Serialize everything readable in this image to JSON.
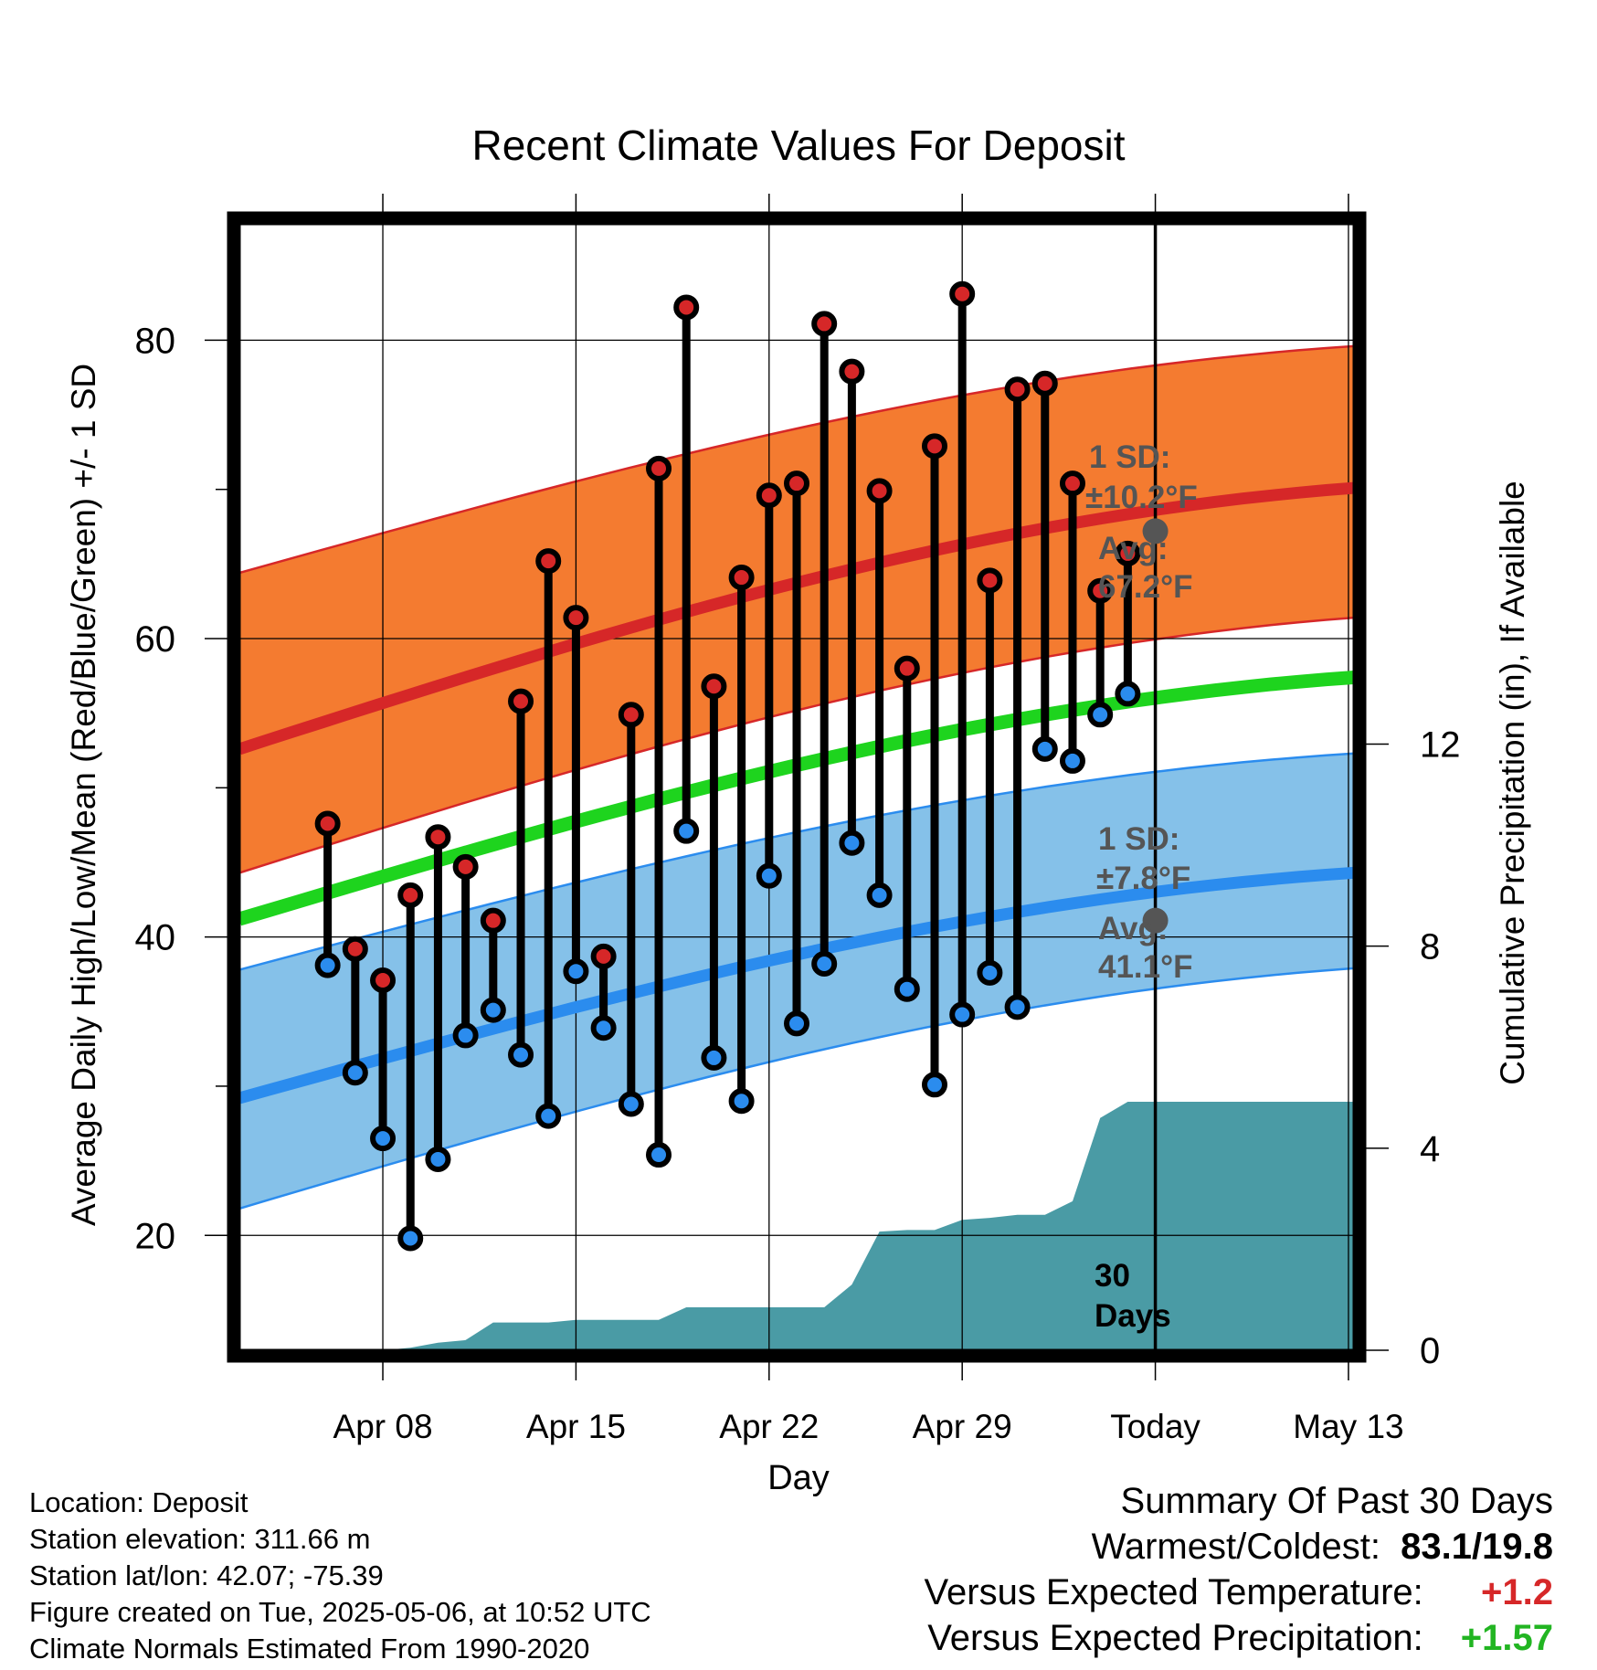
{
  "chart_data": {
    "type": "line",
    "title": "Recent Climate Values For Deposit",
    "xlabel": "Day",
    "ylabel": "Average Daily High/Low/Mean (Red/Blue/Green) +/- 1 SD",
    "y2label": "Cumulative Precipitation (in), If Available",
    "xlim": [
      -5.2,
      35.2
    ],
    "ylim": [
      12.3,
      87.8
    ],
    "y2lim": [
      0,
      22.3
    ],
    "xticks": [
      {
        "x": 0,
        "label": "Apr 08"
      },
      {
        "x": 7,
        "label": "Apr 15"
      },
      {
        "x": 14,
        "label": "Apr 22"
      },
      {
        "x": 21,
        "label": "Apr 29"
      },
      {
        "x": 28,
        "label": "Today"
      },
      {
        "x": 35,
        "label": "May 13"
      }
    ],
    "yticks": [
      20,
      40,
      60,
      80
    ],
    "y2ticks": [
      0,
      4,
      8,
      12
    ],
    "grid": true,
    "days_x": [
      -2,
      -1,
      0,
      1,
      2,
      3,
      4,
      5,
      6,
      7,
      8,
      9,
      10,
      11,
      12,
      13,
      14,
      15,
      16,
      17,
      18,
      19,
      20,
      21,
      22,
      23,
      24,
      25,
      26,
      27
    ],
    "series": [
      {
        "name": "High",
        "color": "#d62728",
        "values": [
          47.6,
          39.2,
          37.1,
          42.8,
          46.7,
          44.7,
          41.1,
          55.8,
          65.2,
          61.4,
          38.7,
          54.9,
          71.4,
          82.2,
          56.8,
          64.1,
          69.6,
          70.4,
          81.1,
          77.9,
          69.9,
          58.0,
          72.9,
          83.1,
          63.9,
          76.7,
          77.1,
          70.4,
          63.2,
          65.7
        ]
      },
      {
        "name": "Low",
        "color": "#2b8cee",
        "values": [
          38.1,
          30.9,
          26.5,
          19.8,
          25.1,
          33.4,
          35.1,
          32.1,
          28.0,
          37.7,
          33.9,
          28.8,
          25.4,
          47.1,
          31.9,
          29.0,
          44.1,
          34.2,
          38.2,
          46.3,
          42.8,
          36.5,
          30.1,
          34.8,
          37.6,
          35.3,
          52.6,
          51.8,
          54.9,
          56.3
        ]
      },
      {
        "name": "Mean",
        "color": "#1ed41e",
        "x": [
          -5.2,
          35.2
        ],
        "values": [
          41.2,
          57.4
        ]
      }
    ],
    "normals": {
      "high_avg": {
        "x": [
          -5.2,
          35.2
        ],
        "values": [
          52.6,
          70.1
        ]
      },
      "high_band": {
        "x": [
          -5.2,
          35.2
        ],
        "lower": [
          44.3,
          61.4
        ],
        "upper": [
          64.4,
          79.6
        ]
      },
      "low_avg": {
        "x": [
          -5.2,
          35.2
        ],
        "values": [
          29.2,
          44.3
        ]
      },
      "low_band": {
        "x": [
          -5.2,
          35.2
        ],
        "lower": [
          21.8,
          37.9
        ],
        "upper": [
          37.8,
          52.3
        ]
      }
    },
    "precipitation": {
      "x": [
        -1,
        0,
        1,
        2,
        3,
        4,
        5,
        6,
        7,
        8,
        9,
        10,
        11,
        12,
        13,
        14,
        15,
        16,
        17,
        18,
        19,
        20,
        21,
        22,
        23,
        24,
        25,
        26,
        27,
        35.2
      ],
      "values": [
        0,
        0,
        0.05,
        0.15,
        0.2,
        0.55,
        0.55,
        0.55,
        0.6,
        0.6,
        0.6,
        0.6,
        0.85,
        0.85,
        0.85,
        0.85,
        0.85,
        0.85,
        1.3,
        2.35,
        2.38,
        2.38,
        2.58,
        2.62,
        2.68,
        2.68,
        2.95,
        4.6,
        4.92,
        4.92
      ]
    },
    "annotations": {
      "today_x": 28,
      "high_sd_label": "1 SD:",
      "high_sd_value": "±10.2°F",
      "high_avg_label": "Avg:",
      "high_avg_value": "67.2°F",
      "high_marker_y": 67.2,
      "low_sd_label": "1 SD:",
      "low_sd_value": "±7.8°F",
      "low_avg_label": "Avg:",
      "low_avg_value": "41.1°F",
      "low_marker_y": 41.1,
      "days_label_1": "30",
      "days_label_2": "Days"
    },
    "colors": {
      "high_band": "#f47b30",
      "high_line": "#d62728",
      "low_band": "#85c1e9",
      "low_line": "#2b8cee",
      "mean_line": "#1ed41e",
      "precip": "#4a9ba5",
      "annotation_text": "#555555"
    }
  },
  "footer": {
    "location": "Location: Deposit",
    "elevation": "Station elevation: 311.66 m",
    "latlon": "Station lat/lon: 42.07; -75.39",
    "created": "Figure created on Tue, 2025-05-06, at 10:52 UTC",
    "normals": "Climate Normals Estimated From 1990-2020"
  },
  "summary": {
    "title": "Summary Of Past 30 Days",
    "warm_cold_label": "Warmest/Coldest:",
    "warm_cold_value": "83.1/19.8",
    "temp_label": "Versus Expected Temperature:",
    "temp_value": "+1.2",
    "precip_label": "Versus Expected Precipitation:",
    "precip_value": "+1.57"
  }
}
